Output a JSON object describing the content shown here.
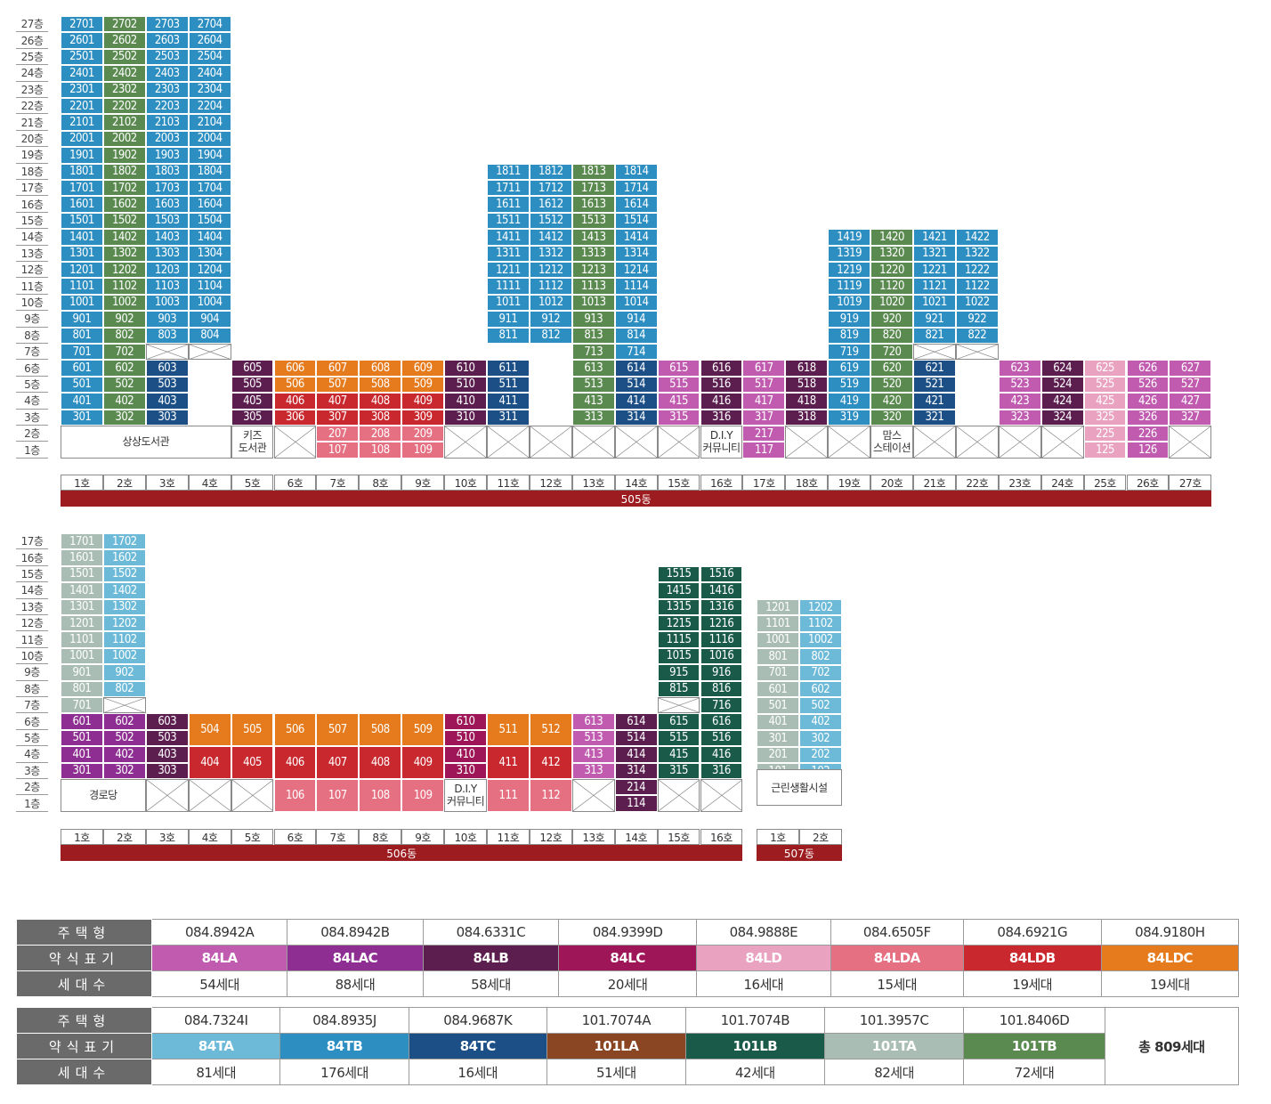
{
  "colors": {
    "84LA": "#c05bb0",
    "84LAC": "#8e2e92",
    "84LB": "#5b1e4f",
    "84LC": "#9e1657",
    "84LD": "#e9a2c0",
    "84LDA": "#e57082",
    "84LDB": "#c8282e",
    "84LDC": "#e57b1d",
    "84TA": "#6dbad8",
    "84TB": "#2d8ec2",
    "84TC": "#1b4f85",
    "101LA": "#8a4522",
    "101LB": "#1a5a48",
    "101TA": "#a9bdb5",
    "101TB": "#5a8a50"
  },
  "building505": {
    "label": "505동",
    "floors": [
      "27층",
      "26층",
      "25층",
      "24층",
      "23층",
      "22층",
      "21층",
      "20층",
      "19층",
      "18층",
      "17층",
      "16층",
      "15층",
      "14층",
      "13층",
      "12층",
      "11층",
      "10층",
      "9층",
      "8층",
      "7층",
      "6층",
      "5층",
      "4층",
      "3층",
      "2층",
      "1층"
    ],
    "hos": [
      "1호",
      "2호",
      "3호",
      "4호",
      "5호",
      "6호",
      "7호",
      "8호",
      "9호",
      "10호",
      "11호",
      "12호",
      "13호",
      "14호",
      "15호",
      "16호",
      "17호",
      "18호",
      "19호",
      "20호",
      "21호",
      "22호",
      "23호",
      "24호",
      "25호",
      "26호",
      "27호"
    ],
    "cols": [
      {
        "cells": [
          {
            "from": 6,
            "to": 27,
            "t": "84TB"
          },
          {
            "from": 3,
            "to": 5,
            "t": "84TB"
          }
        ]
      },
      {
        "cells": [
          {
            "from": 7,
            "to": 27,
            "t": "101TB"
          },
          {
            "from": 3,
            "to": 6,
            "t": "101TB"
          }
        ]
      },
      {
        "cells": [
          {
            "from": 8,
            "to": 27,
            "t": "84TB"
          },
          {
            "from": 7,
            "to": 7,
            "na": true
          },
          {
            "from": 3,
            "to": 6,
            "t": "84TC",
            "c": "303",
            "merge": [
              3,
              3
            ]
          }
        ]
      },
      {
        "cells": [
          {
            "from": 8,
            "to": 27,
            "t": "84TB"
          },
          {
            "from": 7,
            "to": 7,
            "na": true
          }
        ]
      },
      {
        "cells": [
          {
            "from": 3,
            "to": 6,
            "t": "84LB"
          }
        ]
      },
      {
        "cells": [
          {
            "from": 5,
            "to": 6,
            "t": "84LDC"
          },
          {
            "from": 3,
            "to": 4,
            "t": "84LDB"
          }
        ]
      },
      {
        "cells": [
          {
            "from": 5,
            "to": 6,
            "t": "84LDC"
          },
          {
            "from": 3,
            "to": 4,
            "t": "84LDB"
          },
          {
            "from": 1,
            "to": 2,
            "t": "84LDA"
          }
        ]
      },
      {
        "cells": [
          {
            "from": 5,
            "to": 6,
            "t": "84LDC"
          },
          {
            "from": 3,
            "to": 4,
            "t": "84LDB"
          },
          {
            "from": 1,
            "to": 2,
            "t": "84LDA"
          }
        ]
      },
      {
        "cells": [
          {
            "from": 5,
            "to": 6,
            "t": "84LDC"
          },
          {
            "from": 3,
            "to": 4,
            "t": "84LDB"
          },
          {
            "from": 1,
            "to": 2,
            "t": "84LDA"
          }
        ]
      },
      {
        "cells": [
          {
            "from": 3,
            "to": 6,
            "t": "84LB"
          }
        ]
      },
      {
        "cells": [
          {
            "from": 8,
            "to": 18,
            "t": "84TB"
          },
          {
            "from": 3,
            "to": 6,
            "t": "84TC"
          }
        ]
      },
      {
        "cells": [
          {
            "from": 8,
            "to": 18,
            "t": "84TB"
          }
        ]
      },
      {
        "cells": [
          {
            "from": 8,
            "to": 18,
            "t": "101TB"
          },
          {
            "from": 3,
            "to": 7,
            "t": "101TB"
          }
        ]
      },
      {
        "cells": [
          {
            "from": 7,
            "to": 18,
            "t": "84TB"
          },
          {
            "from": 3,
            "to": 6,
            "t": "84TC"
          }
        ]
      },
      {
        "cells": [
          {
            "from": 3,
            "to": 6,
            "t": "84LA"
          }
        ]
      },
      {
        "cells": [
          {
            "from": 3,
            "to": 6,
            "t": "84LB"
          }
        ]
      },
      {
        "cells": [
          {
            "from": 1,
            "to": 6,
            "t": "84LA"
          }
        ]
      },
      {
        "cells": [
          {
            "from": 3,
            "to": 6,
            "t": "84LB"
          }
        ]
      },
      {
        "cells": [
          {
            "from": 7,
            "to": 14,
            "t": "84TB"
          },
          {
            "from": 3,
            "to": 6,
            "t": "84TB"
          }
        ]
      },
      {
        "cells": [
          {
            "from": 7,
            "to": 14,
            "t": "101TB"
          },
          {
            "from": 3,
            "to": 6,
            "t": "101TB"
          }
        ]
      },
      {
        "cells": [
          {
            "from": 8,
            "to": 14,
            "t": "84TB"
          },
          {
            "from": 7,
            "to": 7,
            "na": true
          },
          {
            "from": 3,
            "to": 6,
            "t": "84TC"
          }
        ]
      },
      {
        "cells": [
          {
            "from": 8,
            "to": 14,
            "t": "84TB"
          },
          {
            "from": 7,
            "to": 7,
            "na": true
          }
        ]
      },
      {
        "cells": [
          {
            "from": 3,
            "to": 6,
            "t": "84LA"
          }
        ]
      },
      {
        "cells": [
          {
            "from": 3,
            "to": 6,
            "t": "84LB"
          }
        ]
      },
      {
        "cells": [
          {
            "from": 1,
            "to": 6,
            "t": "84LD"
          }
        ]
      },
      {
        "cells": [
          {
            "from": 1,
            "to": 6,
            "t": "84LA"
          }
        ]
      },
      {
        "cells": [
          {
            "from": 3,
            "to": 6,
            "t": "84LA"
          }
        ]
      }
    ],
    "facilities": [
      {
        "label": "상상도서관",
        "col": 1,
        "span": 4,
        "from": 1,
        "to": 2
      },
      {
        "label": "키즈\n도서관",
        "col": 5,
        "span": 1,
        "from": 1,
        "to": 2
      },
      {
        "label": "D.I.Y\n커뮤니티",
        "col": 16,
        "span": 1,
        "from": 1,
        "to": 2
      },
      {
        "label": "맘스\n스테이션",
        "col": 20,
        "span": 1,
        "from": 1,
        "to": 2
      }
    ]
  },
  "building506": {
    "label": "506동",
    "floors": [
      "17층",
      "16층",
      "15층",
      "14층",
      "13층",
      "12층",
      "11층",
      "10층",
      "9층",
      "8층",
      "7층",
      "6층",
      "5층",
      "4층",
      "3층",
      "2층",
      "1층"
    ],
    "hos": [
      "1호",
      "2호",
      "3호",
      "4호",
      "5호",
      "6호",
      "7호",
      "8호",
      "9호",
      "10호",
      "11호",
      "12호",
      "13호",
      "14호",
      "15호",
      "16호"
    ],
    "facilities": [
      {
        "label": "경로당",
        "col": 1,
        "span": 2,
        "from": 1,
        "to": 2
      },
      {
        "label": "D.I.Y\n커뮤니티",
        "col": 10,
        "span": 1,
        "from": 1,
        "to": 2
      }
    ]
  },
  "building507": {
    "label": "507동",
    "hos": [
      "1호",
      "2호"
    ],
    "facilities": [
      {
        "label": "근린생활시설",
        "col": 1,
        "span": 2,
        "from": 1,
        "to": 2
      }
    ]
  },
  "legend": {
    "head_type": "주택형",
    "head_abbr": "약식표기",
    "head_count": "세대수",
    "row1": [
      {
        "type": "084.8942A",
        "abbr": "84LA",
        "count": "54세대"
      },
      {
        "type": "084.8942B",
        "abbr": "84LAC",
        "count": "88세대"
      },
      {
        "type": "084.6331C",
        "abbr": "84LB",
        "count": "58세대"
      },
      {
        "type": "084.9399D",
        "abbr": "84LC",
        "count": "20세대"
      },
      {
        "type": "084.9888E",
        "abbr": "84LD",
        "count": "16세대"
      },
      {
        "type": "084.6505F",
        "abbr": "84LDA",
        "count": "15세대"
      },
      {
        "type": "084.6921G",
        "abbr": "84LDB",
        "count": "19세대"
      },
      {
        "type": "084.9180H",
        "abbr": "84LDC",
        "count": "19세대"
      }
    ],
    "row2": [
      {
        "type": "084.7324I",
        "abbr": "84TA",
        "count": "81세대"
      },
      {
        "type": "084.8935J",
        "abbr": "84TB",
        "count": "176세대"
      },
      {
        "type": "084.9687K",
        "abbr": "84TC",
        "count": "16세대"
      },
      {
        "type": "101.7074A",
        "abbr": "101LA",
        "count": "51세대"
      },
      {
        "type": "101.7074B",
        "abbr": "101LB",
        "count": "42세대"
      },
      {
        "type": "101.3957C",
        "abbr": "101TA",
        "count": "82세대"
      },
      {
        "type": "101.8406D",
        "abbr": "101TB",
        "count": "72세대"
      }
    ],
    "total": "총 809세대"
  }
}
